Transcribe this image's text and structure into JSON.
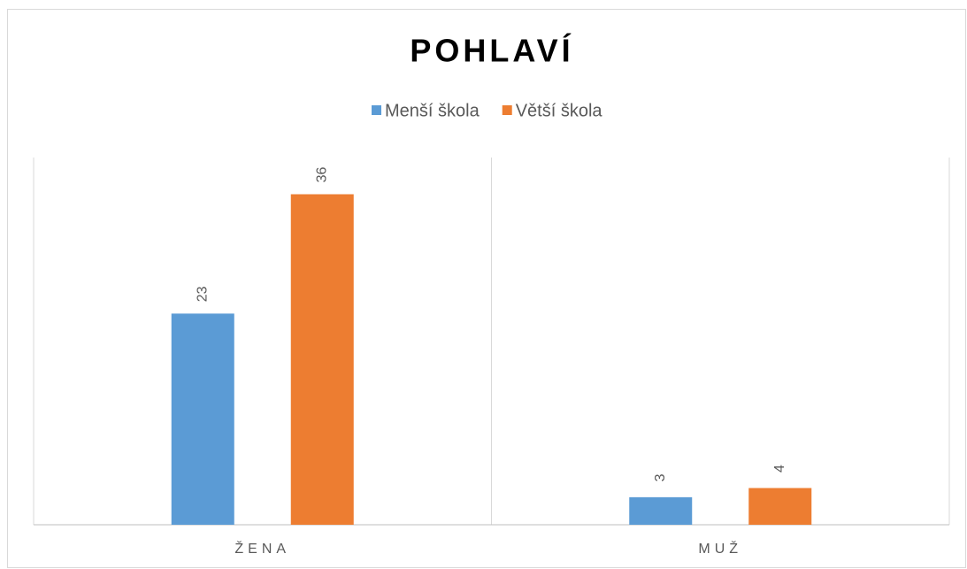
{
  "chart_data": {
    "type": "bar",
    "title": "POHLAVÍ",
    "categories": [
      "ŽENA",
      "MUŽ"
    ],
    "series": [
      {
        "name": "Menší škola",
        "color": "#5b9bd5",
        "values": [
          23,
          3
        ]
      },
      {
        "name": "Větší škola",
        "color": "#ed7d31",
        "values": [
          36,
          4
        ]
      }
    ],
    "ylim": [
      0,
      40
    ],
    "legend": "top"
  }
}
